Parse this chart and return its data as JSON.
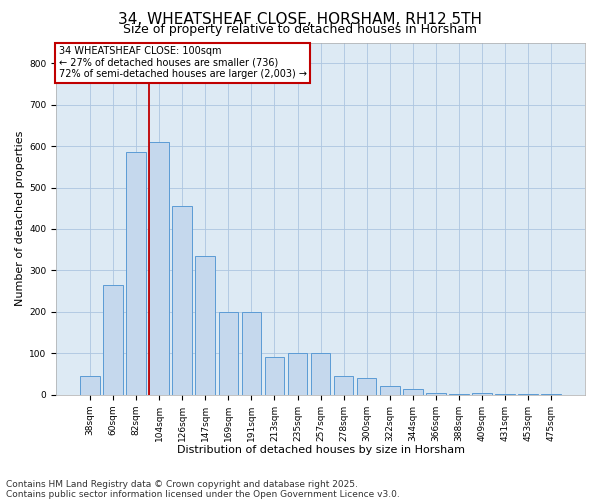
{
  "title": "34, WHEATSHEAF CLOSE, HORSHAM, RH12 5TH",
  "subtitle": "Size of property relative to detached houses in Horsham",
  "xlabel": "Distribution of detached houses by size in Horsham",
  "ylabel": "Number of detached properties",
  "categories": [
    "38sqm",
    "60sqm",
    "82sqm",
    "104sqm",
    "126sqm",
    "147sqm",
    "169sqm",
    "191sqm",
    "213sqm",
    "235sqm",
    "257sqm",
    "278sqm",
    "300sqm",
    "322sqm",
    "344sqm",
    "366sqm",
    "388sqm",
    "409sqm",
    "431sqm",
    "453sqm",
    "475sqm"
  ],
  "values": [
    45,
    265,
    585,
    610,
    455,
    335,
    200,
    200,
    90,
    100,
    100,
    45,
    40,
    20,
    15,
    5,
    2,
    5,
    2,
    2,
    2
  ],
  "bar_color": "#c5d8ed",
  "bar_edge_color": "#5b9bd5",
  "vline_x_index": 3,
  "vline_color": "#c00000",
  "annotation_box_text": "34 WHEATSHEAF CLOSE: 100sqm\n← 27% of detached houses are smaller (736)\n72% of semi-detached houses are larger (2,003) →",
  "annotation_box_color": "#c00000",
  "annotation_box_bg": "white",
  "ylim": [
    0,
    850
  ],
  "yticks": [
    0,
    100,
    200,
    300,
    400,
    500,
    600,
    700,
    800
  ],
  "grid_color": "#adc6e0",
  "bg_color": "#ddeaf4",
  "title_fontsize": 11,
  "subtitle_fontsize": 9,
  "footer_text": "Contains HM Land Registry data © Crown copyright and database right 2025.\nContains public sector information licensed under the Open Government Licence v3.0.",
  "footer_fontsize": 6.5,
  "ann_fontsize": 7.0,
  "tick_fontsize": 6.5,
  "axis_label_fontsize": 8
}
